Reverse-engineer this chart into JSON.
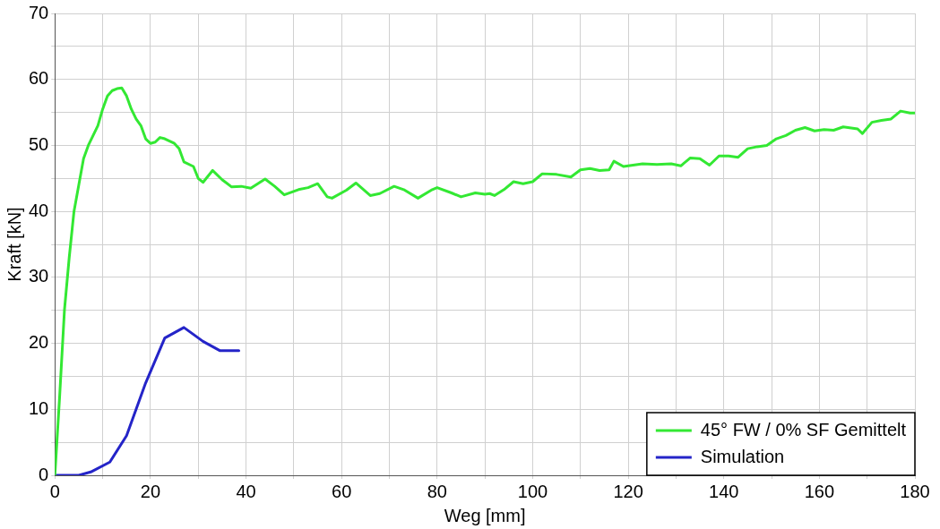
{
  "chart_data": {
    "type": "line",
    "xlabel": "Weg [mm]",
    "ylabel": "Kraft [kN]",
    "xlim": [
      0,
      180
    ],
    "ylim": [
      0,
      70
    ],
    "xticks": [
      0,
      {
        "value": 10,
        "label": null
      },
      20,
      {
        "value": 30,
        "label": null
      },
      40,
      {
        "value": 50,
        "label": null
      },
      60,
      {
        "value": 70,
        "label": null
      },
      80,
      {
        "value": 90,
        "label": null
      },
      100,
      {
        "value": 110,
        "label": null
      },
      120,
      {
        "value": 130,
        "label": null
      },
      140,
      {
        "value": 150,
        "label": null
      },
      160,
      {
        "value": 170,
        "label": null
      },
      180
    ],
    "yticks": [
      0,
      {
        "value": 5,
        "label": null
      },
      10,
      {
        "value": 15,
        "label": null
      },
      20,
      {
        "value": 25,
        "label": null
      },
      30,
      {
        "value": 35,
        "label": null
      },
      40,
      {
        "value": 45,
        "label": null
      },
      50,
      {
        "value": 55,
        "label": null
      },
      60,
      {
        "value": 65,
        "label": null
      },
      70
    ],
    "grid": true,
    "legend": "bottom right",
    "marker": "none",
    "line_style": "solid",
    "series": [
      {
        "name": "45° FW / 0% SF Gemittelt",
        "color": "#33e833",
        "x": [
          0,
          1,
          2,
          3,
          4,
          5,
          6,
          7,
          8,
          9,
          10,
          11,
          12,
          13,
          14,
          15,
          16,
          17,
          18,
          19,
          20,
          21,
          22,
          23,
          25,
          26,
          27,
          29,
          30,
          31,
          33,
          35,
          37,
          39,
          41,
          44,
          46,
          48,
          51,
          53,
          55,
          57,
          58,
          61,
          63,
          66,
          68,
          71,
          73,
          76,
          79,
          80,
          83,
          85,
          88,
          90,
          91,
          92,
          94,
          96,
          98,
          100,
          102,
          105,
          108,
          110,
          112,
          114,
          116,
          117,
          119,
          121,
          123,
          126,
          129,
          131,
          133,
          135,
          137,
          139,
          141,
          143,
          145,
          147,
          149,
          151,
          153,
          155,
          157,
          159,
          161,
          163,
          165,
          168,
          169,
          171,
          173,
          175,
          177,
          179,
          180
        ],
        "values": [
          0,
          12,
          25,
          33,
          40,
          44,
          48,
          50,
          51.5,
          53,
          55.5,
          57.5,
          58.3,
          58.6,
          58.7,
          57.5,
          55.5,
          54,
          53,
          51,
          50.3,
          50.5,
          51.2,
          51,
          50.3,
          49.5,
          47.5,
          46.8,
          45,
          44.4,
          46.2,
          44.8,
          43.7,
          43.8,
          43.5,
          44.9,
          43.8,
          42.5,
          43.3,
          43.6,
          44.2,
          42.2,
          42,
          43.2,
          44.3,
          42.4,
          42.7,
          43.8,
          43.3,
          42,
          43.3,
          43.6,
          42.8,
          42.2,
          42.8,
          42.6,
          42.7,
          42.4,
          43.3,
          44.5,
          44.2,
          44.5,
          45.7,
          45.6,
          45.2,
          46.3,
          46.5,
          46.2,
          46.3,
          47.6,
          46.8,
          47,
          47.2,
          47.1,
          47.2,
          46.9,
          48.1,
          48,
          47,
          48.4,
          48.4,
          48.2,
          49.5,
          49.8,
          50,
          51,
          51.5,
          52.3,
          52.7,
          52.2,
          52.4,
          52.3,
          52.8,
          52.5,
          51.8,
          53.5,
          53.8,
          54,
          55.2,
          54.9,
          54.9
        ]
      },
      {
        "name": "Simulation",
        "color": "#2424c8",
        "x": [
          0,
          5,
          7.5,
          11.5,
          15,
          19,
          23,
          27,
          31,
          34.5,
          38.5
        ],
        "values": [
          0,
          0,
          0.5,
          2,
          6,
          14,
          20.8,
          22.4,
          20.3,
          18.9,
          18.9
        ]
      }
    ]
  }
}
